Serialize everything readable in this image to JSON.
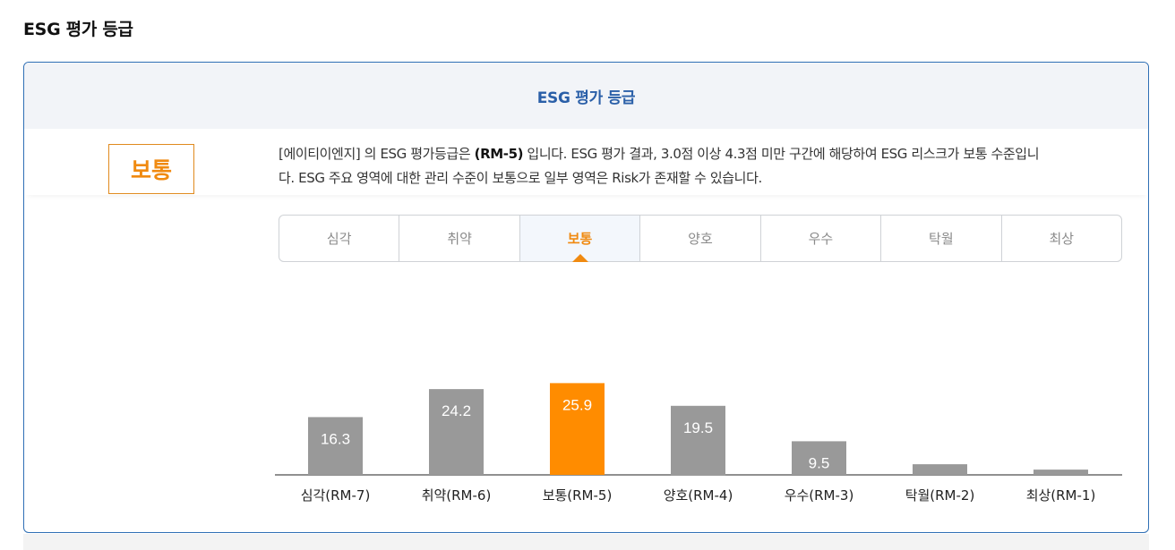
{
  "page": {
    "title": "ESG 평가 등급"
  },
  "card": {
    "header_title": "ESG 평가 등급",
    "grade_label": "보통",
    "description_prefix": "[에이티이엔지] 의 ESG 평가등급은 ",
    "description_grade": "(RM-5)",
    "description_line1_suffix": " 입니다. ESG 평가 결과, 3.0점 이상 4.3점 미만 구간에 해당하여 ESG 리스크가 보통 수준입니",
    "description_line2": "다. ESG 주요 영역에 대한 관리 수준이 보통으로 일부 영역은 Risk가 존재할 수 있습니다."
  },
  "tabs": [
    {
      "label": "심각",
      "active": false
    },
    {
      "label": "취약",
      "active": false
    },
    {
      "label": "보통",
      "active": true
    },
    {
      "label": "양호",
      "active": false
    },
    {
      "label": "우수",
      "active": false
    },
    {
      "label": "탁월",
      "active": false
    },
    {
      "label": "최상",
      "active": false
    }
  ],
  "colors": {
    "accent": "#f08a10",
    "highlight_bar": "#ff8c00",
    "bar": "#999999",
    "brand_blue": "#2a5fa8"
  },
  "chart_data": {
    "type": "bar",
    "categories": [
      "심각(RM-7)",
      "취약(RM-6)",
      "보통(RM-5)",
      "양호(RM-4)",
      "우수(RM-3)",
      "탁월(RM-2)",
      "최상(RM-1)"
    ],
    "values": [
      16.3,
      24.2,
      25.9,
      19.5,
      9.5,
      3.0,
      1.5
    ],
    "data_labels": [
      "16.3",
      "24.2",
      "25.9",
      "19.5",
      "9.5",
      "",
      ""
    ],
    "highlight_index": 2,
    "ylim": [
      0,
      26
    ],
    "title": "",
    "xlabel": "",
    "ylabel": "",
    "grid": false,
    "legend": "none"
  }
}
